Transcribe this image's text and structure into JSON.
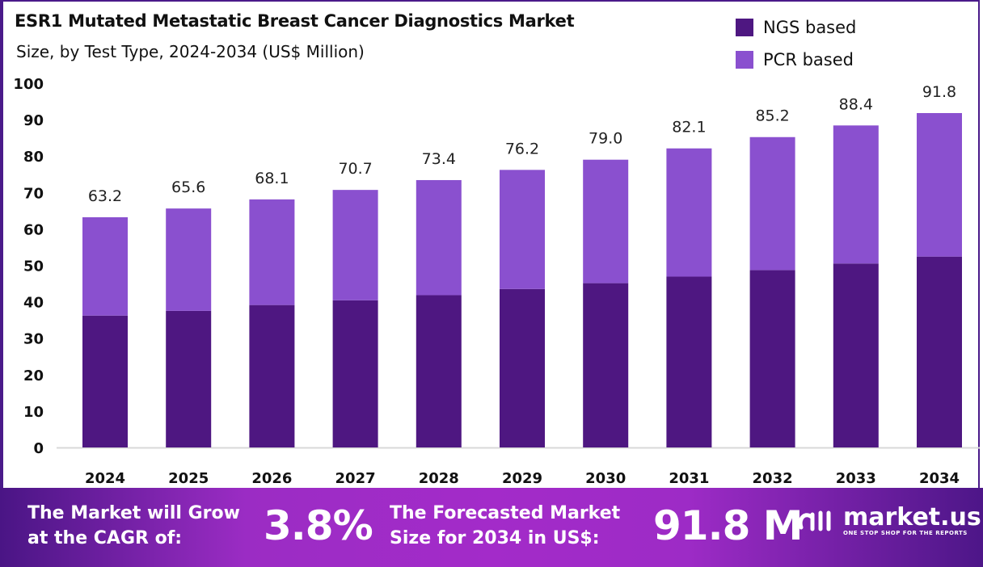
{
  "colors": {
    "ngs": "#4e1781",
    "pcr": "#8a50cf",
    "accent": "#4a1a8a"
  },
  "chart_data": {
    "type": "bar",
    "stacked": true,
    "title": "ESR1 Mutated Metastatic Breast Cancer Diagnostics Market",
    "subtitle": "Size, by Test Type, 2024-2034 (US$ Million)",
    "categories": [
      "2024",
      "2025",
      "2026",
      "2027",
      "2028",
      "2029",
      "2030",
      "2031",
      "2032",
      "2033",
      "2034"
    ],
    "series": [
      {
        "name": "NGS based",
        "values": [
          36.2,
          37.5,
          39.1,
          40.4,
          41.8,
          43.5,
          45.1,
          46.9,
          48.7,
          50.5,
          52.4
        ]
      },
      {
        "name": "PCR based",
        "values": [
          27.0,
          28.1,
          29.0,
          30.3,
          31.6,
          32.7,
          33.9,
          35.2,
          36.5,
          37.9,
          39.4
        ]
      }
    ],
    "totals": [
      "63.2",
      "65.6",
      "68.1",
      "70.7",
      "73.4",
      "76.2",
      "79.0",
      "82.1",
      "85.2",
      "88.4",
      "91.8"
    ],
    "yticks": [
      "0",
      "10",
      "20",
      "30",
      "40",
      "50",
      "60",
      "70",
      "80",
      "90",
      "100"
    ],
    "ylim": [
      0,
      100
    ],
    "grid": false,
    "legend": "top-right"
  },
  "footer": {
    "cagr_label_1": "The Market will Grow",
    "cagr_label_2": "at the CAGR of:",
    "cagr_value": "3.8%",
    "forecast_label_1": "The Forecasted Market",
    "forecast_label_2": "Size for 2034 in US$:",
    "forecast_value": "91.8 M",
    "logo_name": "market.us",
    "logo_tagline": "ONE STOP SHOP FOR THE REPORTS"
  }
}
